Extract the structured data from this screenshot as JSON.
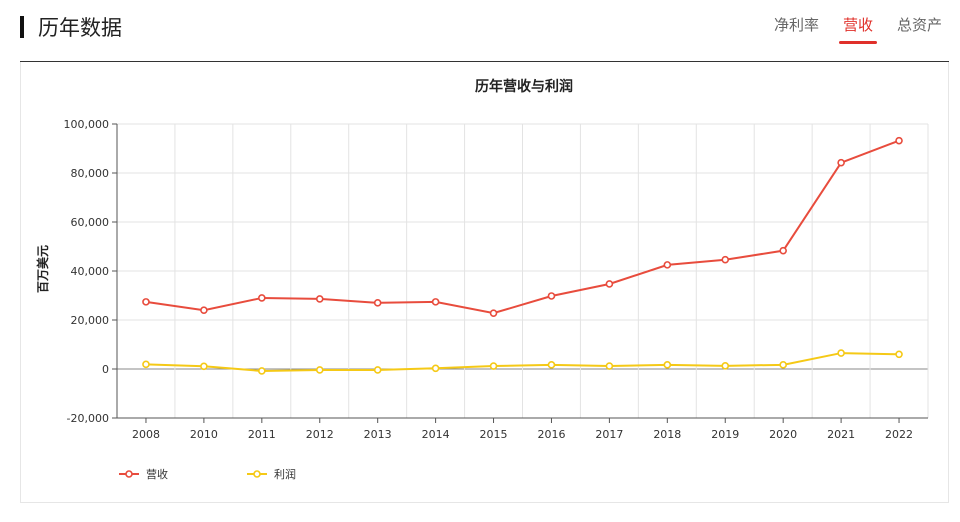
{
  "section": {
    "title": "历年数据",
    "tabs": [
      {
        "label": "净利率",
        "active": false
      },
      {
        "label": "营收",
        "active": true
      },
      {
        "label": "总资产",
        "active": false
      }
    ]
  },
  "colors": {
    "accent": "#e0302a",
    "revenue": "#e84c3d",
    "profit": "#f5c916"
  },
  "chart_data": {
    "type": "line",
    "title": "历年营收与利润",
    "ylabel": "百万美元",
    "xlabel": "",
    "categories": [
      "2008",
      "2010",
      "2011",
      "2012",
      "2013",
      "2014",
      "2015",
      "2016",
      "2017",
      "2018",
      "2019",
      "2020",
      "2021",
      "2022"
    ],
    "ylim": [
      -20000,
      100000
    ],
    "yticks": [
      -20000,
      0,
      20000,
      40000,
      60000,
      80000,
      100000
    ],
    "grid": true,
    "legend_position": "bottom-left",
    "series": [
      {
        "name": "营收",
        "color": "#e84c3d",
        "values": [
          27400,
          24000,
          29000,
          28600,
          27000,
          27400,
          22800,
          29800,
          34700,
          42500,
          44600,
          48300,
          84200,
          93200
        ]
      },
      {
        "name": "利润",
        "color": "#f5c916",
        "values": [
          1900,
          1100,
          -800,
          -400,
          -400,
          300,
          1200,
          1700,
          1200,
          1700,
          1300,
          1700,
          6500,
          6000
        ]
      }
    ]
  }
}
